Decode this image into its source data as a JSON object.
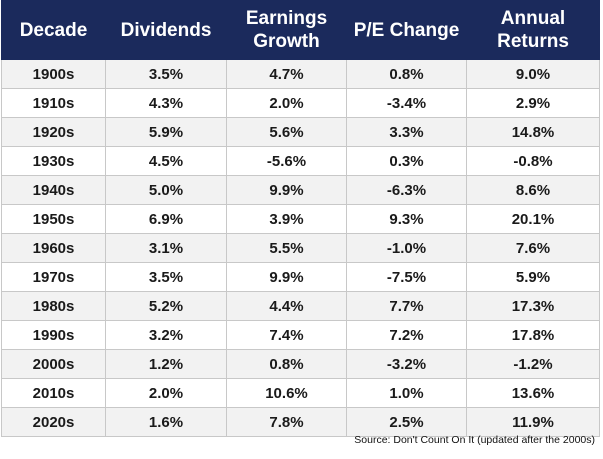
{
  "table": {
    "header": [
      "Decade",
      "Dividends",
      "Earnings Growth",
      "P/E Change",
      "Annual Returns"
    ],
    "rows": [
      [
        "1900s",
        "3.5%",
        "4.7%",
        "0.8%",
        "9.0%"
      ],
      [
        "1910s",
        "4.3%",
        "2.0%",
        "-3.4%",
        "2.9%"
      ],
      [
        "1920s",
        "5.9%",
        "5.6%",
        "3.3%",
        "14.8%"
      ],
      [
        "1930s",
        "4.5%",
        "-5.6%",
        "0.3%",
        "-0.8%"
      ],
      [
        "1940s",
        "5.0%",
        "9.9%",
        "-6.3%",
        "8.6%"
      ],
      [
        "1950s",
        "6.9%",
        "3.9%",
        "9.3%",
        "20.1%"
      ],
      [
        "1960s",
        "3.1%",
        "5.5%",
        "-1.0%",
        "7.6%"
      ],
      [
        "1970s",
        "3.5%",
        "9.9%",
        "-7.5%",
        "5.9%"
      ],
      [
        "1980s",
        "5.2%",
        "4.4%",
        "7.7%",
        "17.3%"
      ],
      [
        "1990s",
        "3.2%",
        "7.4%",
        "7.2%",
        "17.8%"
      ],
      [
        "2000s",
        "1.2%",
        "0.8%",
        "-3.2%",
        "-1.2%"
      ],
      [
        "2010s",
        "2.0%",
        "10.6%",
        "1.0%",
        "13.6%"
      ],
      [
        "2020s",
        "1.6%",
        "7.8%",
        "2.5%",
        "11.9%"
      ]
    ],
    "source": "Source: Don't Count On It (updated after the 2000s)"
  }
}
